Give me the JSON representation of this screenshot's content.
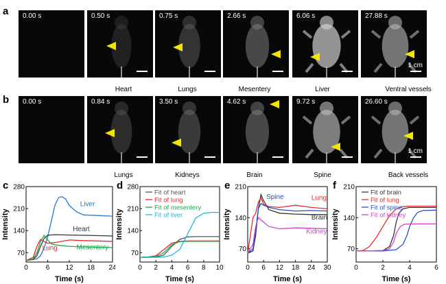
{
  "panel_letters": [
    "a",
    "b",
    "c",
    "d",
    "e",
    "f"
  ],
  "row_a": {
    "times": [
      "0.00 s",
      "0.50 s",
      "0.75 s",
      "2.66 s",
      "6.06 s",
      "27.88 s"
    ],
    "organs": [
      "Heart",
      "Lungs",
      "Mesentery",
      "Liver",
      "Ventral vessels"
    ],
    "scale_label": "1 cm"
  },
  "row_b": {
    "times": [
      "0.00 s",
      "0.84 s",
      "3.50 s",
      "4.62 s",
      "9.72 s",
      "26.60 s"
    ],
    "organs": [
      "Lungs",
      "Kidneys",
      "Brain",
      "Spine",
      "Back vessels"
    ],
    "scale_label": "1 cm"
  },
  "colors": {
    "heart": "#333333",
    "lung": "#e8282a",
    "liver": "#1f77d4",
    "mesentery": "#1aa64a",
    "spine": "#1f4fd4",
    "kidney": "#cc44cc",
    "arrow": "#f2e600"
  },
  "chart_data": [
    {
      "panel": "c",
      "type": "line",
      "xlabel": "Time (s)",
      "ylabel": "Intensity",
      "xlim": [
        0,
        24
      ],
      "ylim": [
        40,
        280
      ],
      "xticks": [
        0,
        6,
        12,
        18,
        24
      ],
      "yticks": [
        70,
        140,
        210,
        280
      ],
      "tick_labels_x": [
        "0",
        "6",
        "12",
        "18",
        "24"
      ],
      "tick_labels_y": [
        "70",
        "140",
        "210",
        "280"
      ],
      "series": [
        {
          "name": "Liver",
          "color": "#1f77d4",
          "x": [
            0,
            3,
            4,
            5,
            6,
            7,
            8,
            9,
            10,
            11,
            12,
            14,
            16,
            20,
            24
          ],
          "y": [
            45,
            50,
            60,
            85,
            120,
            170,
            220,
            245,
            248,
            240,
            220,
            200,
            190,
            188,
            186
          ]
        },
        {
          "name": "Heart",
          "color": "#333333",
          "x": [
            0,
            2,
            3,
            4,
            5,
            6,
            8,
            12,
            16,
            20,
            24
          ],
          "y": [
            45,
            48,
            60,
            90,
            115,
            125,
            127,
            126,
            125,
            124,
            123
          ]
        },
        {
          "name": "Lung",
          "color": "#e8282a",
          "x": [
            0,
            2,
            3,
            4,
            5,
            6,
            8,
            12,
            16,
            20,
            24
          ],
          "y": [
            45,
            55,
            90,
            112,
            105,
            100,
            102,
            110,
            108,
            107,
            106
          ]
        },
        {
          "name": "Mesentery",
          "color": "#1aa64a",
          "x": [
            0,
            2,
            3,
            4,
            5,
            6,
            7,
            8,
            10,
            12,
            16,
            20,
            24
          ],
          "y": [
            45,
            50,
            70,
            105,
            125,
            110,
            98,
            95,
            92,
            90,
            88,
            87,
            86
          ]
        }
      ],
      "annotations": [
        "Liver",
        "Heart",
        "Lung",
        "Mesentery"
      ]
    },
    {
      "panel": "d",
      "type": "line",
      "xlabel": "Time (s)",
      "ylabel": "Intensity",
      "xlim": [
        0,
        10
      ],
      "ylim": [
        40,
        280
      ],
      "xticks": [
        0,
        2,
        4,
        6,
        8,
        10
      ],
      "yticks": [
        70,
        140,
        210,
        280
      ],
      "tick_labels_x": [
        "0",
        "2",
        "4",
        "6",
        "8",
        "10"
      ],
      "tick_labels_y": [
        "70",
        "140",
        "210",
        "280"
      ],
      "series": [
        {
          "name": "Fit of heart",
          "color": "#555555",
          "x": [
            0,
            1,
            2,
            3,
            4,
            5,
            6,
            7,
            8,
            9,
            10
          ],
          "y": [
            55,
            55,
            56,
            62,
            90,
            112,
            120,
            121,
            121,
            121,
            121
          ]
        },
        {
          "name": "Fit of lung",
          "color": "#e8282a",
          "x": [
            0,
            1,
            2,
            3,
            4,
            5,
            6,
            7,
            8,
            9,
            10
          ],
          "y": [
            55,
            56,
            60,
            80,
            100,
            106,
            107,
            107,
            107,
            107,
            107
          ]
        },
        {
          "name": "Fit of mesentery",
          "color": "#1aa64a",
          "x": [
            0,
            1,
            2,
            3,
            4,
            5,
            6,
            7,
            8,
            9,
            10
          ],
          "y": [
            55,
            56,
            58,
            70,
            95,
            105,
            106,
            106,
            106,
            106,
            106
          ]
        },
        {
          "name": "Fit of liver",
          "color": "#1fb4e0",
          "x": [
            0,
            1,
            2,
            3,
            4,
            5,
            6,
            7,
            8,
            9,
            10
          ],
          "y": [
            55,
            55,
            55,
            56,
            62,
            80,
            130,
            180,
            195,
            198,
            198
          ]
        }
      ]
    },
    {
      "panel": "e",
      "type": "line",
      "xlabel": "Time (s)",
      "ylabel": "Intensity",
      "xlim": [
        0,
        30
      ],
      "ylim": [
        40,
        210
      ],
      "xticks": [
        0,
        6,
        12,
        18,
        24,
        30
      ],
      "yticks": [
        70,
        140,
        210
      ],
      "tick_labels_x": [
        "0",
        "6",
        "12",
        "18",
        "24",
        "30"
      ],
      "tick_labels_y": [
        "70",
        "140",
        "210"
      ],
      "series": [
        {
          "name": "Brain",
          "color": "#333333",
          "x": [
            0,
            2,
            3,
            4,
            5,
            6,
            8,
            12,
            18,
            24,
            30
          ],
          "y": [
            60,
            65,
            100,
            160,
            192,
            178,
            158,
            150,
            148,
            147,
            147
          ]
        },
        {
          "name": "Lung",
          "color": "#e8282a",
          "x": [
            0,
            2,
            3,
            4,
            5,
            6,
            8,
            12,
            18,
            24,
            30
          ],
          "y": [
            60,
            140,
            150,
            175,
            185,
            170,
            165,
            163,
            168,
            163,
            160
          ]
        },
        {
          "name": "Spine",
          "color": "#1f4fd4",
          "x": [
            0,
            2,
            3,
            4,
            5,
            6,
            8,
            12,
            18,
            24,
            30
          ],
          "y": [
            60,
            70,
            110,
            160,
            172,
            168,
            163,
            158,
            155,
            156,
            155
          ]
        },
        {
          "name": "Kidney",
          "color": "#cc44cc",
          "x": [
            0,
            2,
            3,
            4,
            5,
            6,
            8,
            12,
            18,
            24,
            30
          ],
          "y": [
            60,
            80,
            120,
            140,
            135,
            130,
            120,
            115,
            117,
            116,
            115
          ]
        }
      ],
      "annotations": [
        "Spine",
        "Lung",
        "Brain",
        "Kidney"
      ]
    },
    {
      "panel": "f",
      "type": "line",
      "xlabel": "Time (s)",
      "ylabel": "Intensity",
      "xlim": [
        0,
        6
      ],
      "ylim": [
        40,
        210
      ],
      "xticks": [
        0,
        2,
        4,
        6
      ],
      "yticks": [
        70,
        140,
        210
      ],
      "tick_labels_x": [
        "0",
        "2",
        "4",
        "6"
      ],
      "tick_labels_y": [
        "70",
        "140",
        "210"
      ],
      "series": [
        {
          "name": "Fit of brain",
          "color": "#333333",
          "x": [
            0,
            1,
            2,
            2.5,
            2.8,
            3,
            3.2,
            3.5,
            4,
            5,
            6
          ],
          "y": [
            65,
            65,
            66,
            75,
            100,
            130,
            150,
            160,
            163,
            163,
            163
          ]
        },
        {
          "name": "Fit of lung",
          "color": "#e8282a",
          "x": [
            0,
            0.5,
            1,
            1.5,
            2,
            2.5,
            3,
            3.5,
            4,
            5,
            6
          ],
          "y": [
            65,
            66,
            75,
            95,
            120,
            145,
            160,
            165,
            166,
            166,
            166
          ]
        },
        {
          "name": "Fit of spine",
          "color": "#1f4fd4",
          "x": [
            0,
            1,
            2,
            3,
            3.5,
            3.8,
            4,
            4.3,
            4.6,
            5,
            6
          ],
          "y": [
            65,
            65,
            65,
            68,
            80,
            100,
            120,
            140,
            152,
            156,
            157
          ]
        },
        {
          "name": "Fit of kidney",
          "color": "#cc44cc",
          "x": [
            0,
            1,
            2,
            2.5,
            2.8,
            3,
            3.3,
            3.6,
            4,
            5,
            6
          ],
          "y": [
            65,
            65,
            66,
            70,
            85,
            105,
            120,
            125,
            126,
            126,
            126
          ]
        }
      ]
    }
  ]
}
